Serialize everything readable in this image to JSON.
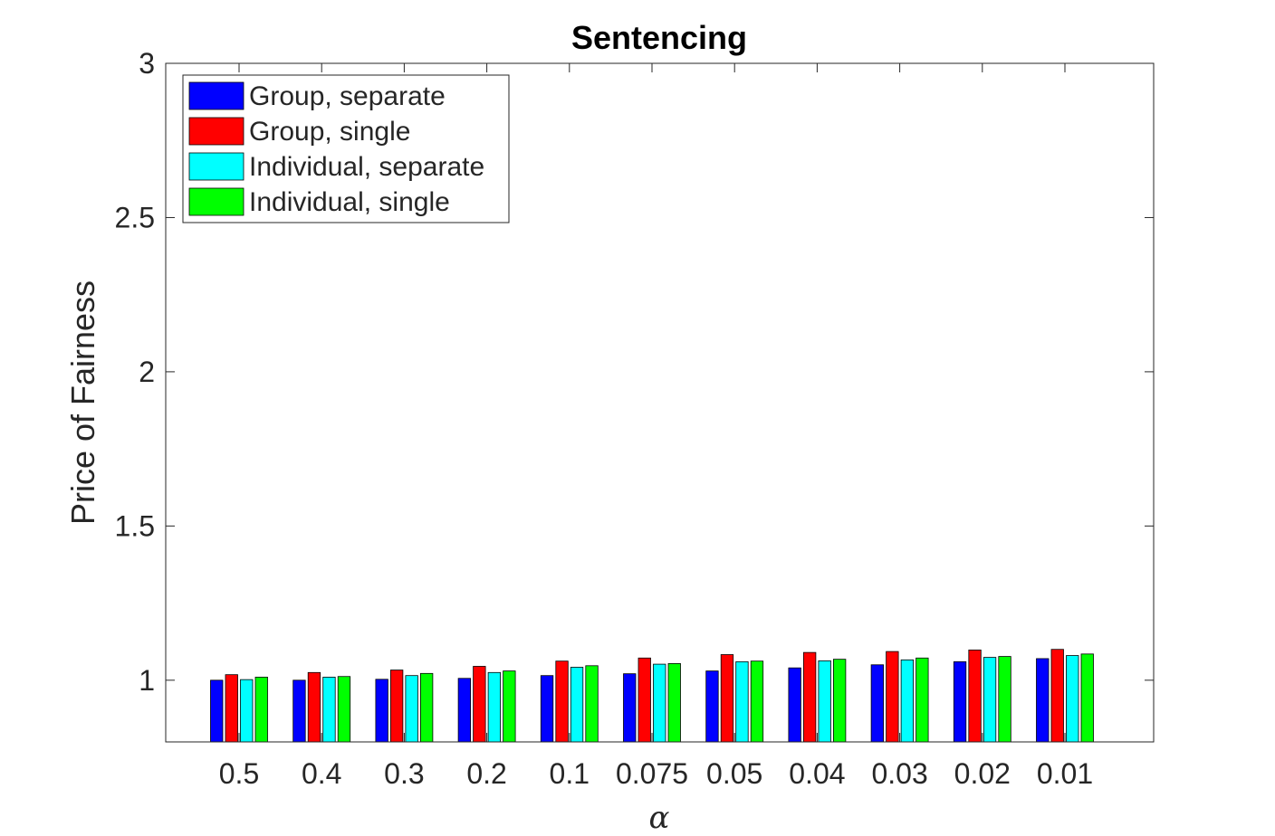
{
  "chart_data": {
    "type": "bar",
    "title": "Sentencing",
    "xlabel": "α",
    "ylabel": "Price of Fairness",
    "categories": [
      "0.5",
      "0.4",
      "0.3",
      "0.2",
      "0.1",
      "0.075",
      "0.05",
      "0.04",
      "0.03",
      "0.02",
      "0.01"
    ],
    "ylim": [
      0.8,
      3
    ],
    "yticks": [
      1,
      1.5,
      2,
      2.5,
      3
    ],
    "ytick_labels": [
      "1",
      "1.5",
      "2",
      "2.5",
      "3"
    ],
    "grid": false,
    "legend_position": "top-left",
    "series": [
      {
        "name": "Group, separate",
        "color": "#0000ff",
        "values": [
          1.0,
          1.0,
          1.003,
          1.006,
          1.015,
          1.021,
          1.03,
          1.04,
          1.05,
          1.06,
          1.07
        ]
      },
      {
        "name": "Group, single",
        "color": "#ff0000",
        "values": [
          1.018,
          1.025,
          1.033,
          1.045,
          1.062,
          1.072,
          1.083,
          1.09,
          1.093,
          1.098,
          1.1
        ]
      },
      {
        "name": "Individual, separate",
        "color": "#00ffff",
        "values": [
          1.002,
          1.01,
          1.015,
          1.025,
          1.042,
          1.052,
          1.06,
          1.063,
          1.066,
          1.074,
          1.08
        ]
      },
      {
        "name": "Individual, single",
        "color": "#00ff00",
        "values": [
          1.01,
          1.012,
          1.022,
          1.03,
          1.047,
          1.054,
          1.062,
          1.068,
          1.072,
          1.077,
          1.085
        ]
      }
    ]
  }
}
